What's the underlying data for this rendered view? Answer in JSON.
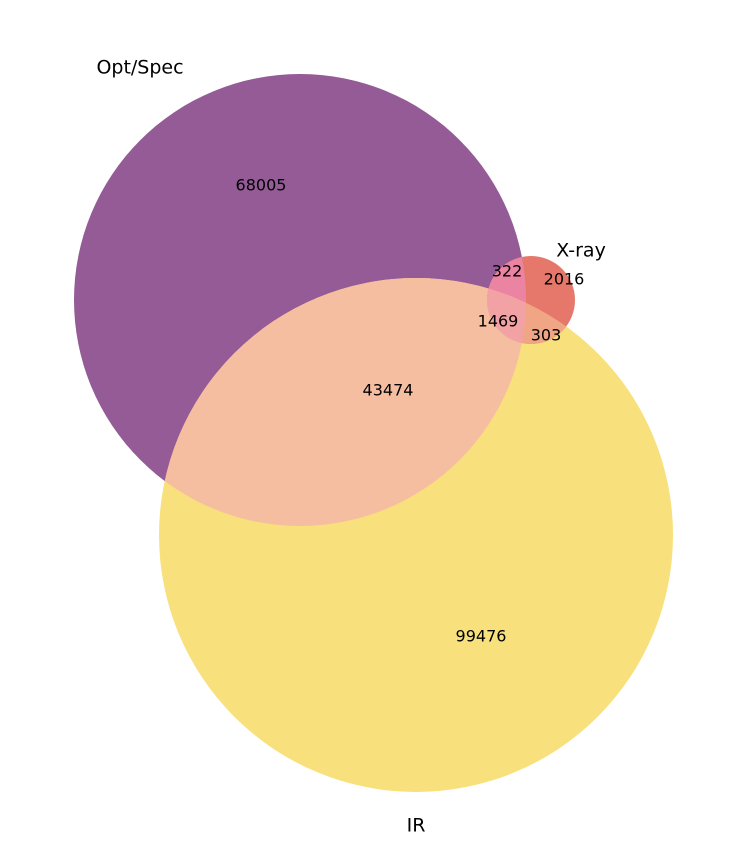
{
  "chart_data": {
    "type": "venn",
    "sets": [
      {
        "name": "Opt/Spec",
        "color": "#955b97"
      },
      {
        "name": "IR",
        "color": "#f8e07c"
      },
      {
        "name": "X-ray",
        "color": "#e5786a"
      }
    ],
    "regions": [
      {
        "value": 68005,
        "color": "#955b97"
      },
      {
        "value": 99476,
        "color": "#f8e07c"
      },
      {
        "value": 2016,
        "color": "#e5786a"
      },
      {
        "value": 43474,
        "color": "#f6bea0"
      },
      {
        "value": 322,
        "color": "#eb84a2"
      },
      {
        "value": 303,
        "color": "#f0a684"
      },
      {
        "value": 1469,
        "color": "#f2a2a4"
      }
    ]
  }
}
